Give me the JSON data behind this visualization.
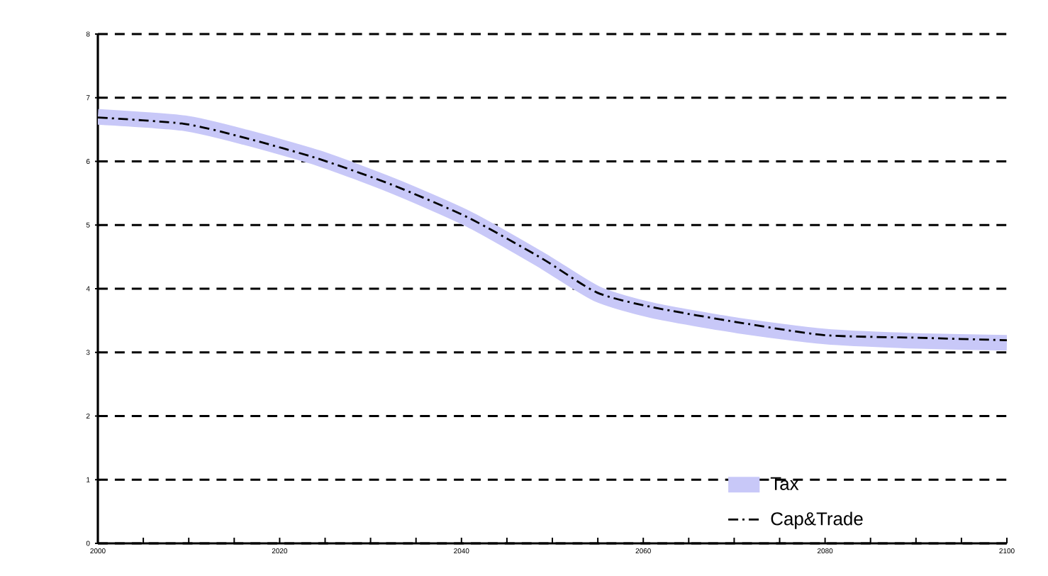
{
  "chart_data": {
    "type": "line",
    "x": [
      2000,
      2009.5,
      2016.2,
      2024.3,
      2032.4,
      2040.7,
      2048.8,
      2054.9,
      2061,
      2070.5,
      2080,
      2090.2,
      2100
    ],
    "series": [
      {
        "name": "Tax",
        "color": "#c8c8f8",
        "values": [
          6.7,
          6.6,
          6.38,
          6.05,
          5.62,
          5.1,
          4.45,
          3.92,
          3.66,
          3.42,
          3.25,
          3.18,
          3.15
        ]
      },
      {
        "name": "Cap&Trade",
        "color": "#000000",
        "line_style": "dashdotted",
        "values": [
          6.69,
          6.59,
          6.37,
          6.04,
          5.63,
          5.12,
          4.48,
          3.94,
          3.71,
          3.47,
          3.27,
          3.23,
          3.19
        ]
      }
    ],
    "xlim": [
      2000,
      2100
    ],
    "xticks": [
      2000,
      {
        "value": 2005,
        "label": null
      },
      {
        "value": 2010,
        "label": null
      },
      {
        "value": 2015,
        "label": null
      },
      2020,
      {
        "value": 2025,
        "label": null
      },
      {
        "value": 2030,
        "label": null
      },
      {
        "value": 2035,
        "label": null
      },
      2040,
      {
        "value": 2045,
        "label": null
      },
      {
        "value": 2050,
        "label": null
      },
      {
        "value": 2055,
        "label": null
      },
      2060,
      {
        "value": 2065,
        "label": null
      },
      {
        "value": 2070,
        "label": null
      },
      {
        "value": 2075,
        "label": null
      },
      2080,
      {
        "value": 2085,
        "label": null
      },
      {
        "value": 2090,
        "label": null
      },
      {
        "value": 2095,
        "label": null
      },
      2100
    ],
    "ylim": [
      0,
      8
    ],
    "yticks": [
      0,
      1,
      2,
      3,
      4,
      5,
      6,
      7,
      8
    ],
    "grid": "y",
    "legend": "bottom right"
  }
}
